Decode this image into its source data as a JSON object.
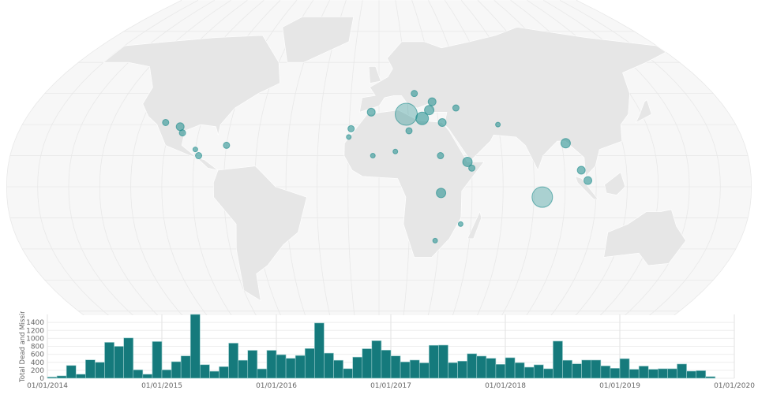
{
  "colors": {
    "bar": "#157a7c",
    "bar_edge": "#9fcfcf",
    "bubble": "#1a8a8a",
    "land": "#e6e6e6",
    "ocean": "#f7f7f7",
    "grid": "#eeeeee"
  },
  "chart_data": [
    {
      "type": "scatter",
      "subtype": "geo-bubble-map",
      "projection": "robinson",
      "points": [
        {
          "lat": 35,
          "lon": 14,
          "size": 14
        },
        {
          "lat": 33,
          "lon": 22,
          "size": 8
        },
        {
          "lat": 37,
          "lon": 26,
          "size": 6
        },
        {
          "lat": 31,
          "lon": 32,
          "size": 5
        },
        {
          "lat": 36,
          "lon": -4,
          "size": 5
        },
        {
          "lat": 38,
          "lon": 40,
          "size": 4
        },
        {
          "lat": 45,
          "lon": 19,
          "size": 4
        },
        {
          "lat": 41,
          "lon": 28,
          "size": 5
        },
        {
          "lat": 31,
          "lon": -108,
          "size": 4
        },
        {
          "lat": 29,
          "lon": -100,
          "size": 5
        },
        {
          "lat": 26,
          "lon": -98,
          "size": 4
        },
        {
          "lat": 20,
          "lon": -75,
          "size": 4
        },
        {
          "lat": 15,
          "lon": -88,
          "size": 4
        },
        {
          "lat": 18,
          "lon": -90,
          "size": 3
        },
        {
          "lat": -5,
          "lon": 79,
          "size": 13
        },
        {
          "lat": 15,
          "lon": 30,
          "size": 4
        },
        {
          "lat": 27,
          "lon": 15,
          "size": 4
        },
        {
          "lat": 17,
          "lon": 8,
          "size": 3
        },
        {
          "lat": 15,
          "lon": -3,
          "size": 3
        },
        {
          "lat": 12,
          "lon": 43,
          "size": 6
        },
        {
          "lat": 9,
          "lon": 45,
          "size": 4
        },
        {
          "lat": -3,
          "lon": 30,
          "size": 6
        },
        {
          "lat": 21,
          "lon": 92,
          "size": 6
        },
        {
          "lat": 8,
          "lon": 98,
          "size": 5
        },
        {
          "lat": 3,
          "lon": 101,
          "size": 5
        },
        {
          "lat": 30,
          "lon": 60,
          "size": 3
        },
        {
          "lat": 24,
          "lon": -15,
          "size": 3
        },
        {
          "lat": 28,
          "lon": -14,
          "size": 4
        },
        {
          "lat": -18,
          "lon": 40,
          "size": 3
        },
        {
          "lat": -26,
          "lon": 28,
          "size": 3
        }
      ]
    },
    {
      "type": "bar",
      "xlabel": "",
      "ylabel": "Total Dead and Missing",
      "ylim": [
        0,
        1600
      ],
      "yticks": [
        "0",
        "200",
        "400",
        "600",
        "800",
        "1000",
        "1200",
        "1400"
      ],
      "xticks": [
        "01/01/2014",
        "01/01/2015",
        "01/01/2016",
        "01/01/2017",
        "01/01/2018",
        "01/01/2019",
        "01/01/2020"
      ],
      "grid": true,
      "start_month": "2014-01",
      "values": [
        30,
        60,
        320,
        100,
        460,
        400,
        900,
        800,
        1010,
        210,
        100,
        920,
        210,
        415,
        560,
        1600,
        340,
        175,
        290,
        880,
        450,
        700,
        235,
        700,
        590,
        500,
        570,
        745,
        1385,
        630,
        450,
        240,
        530,
        740,
        940,
        705,
        560,
        410,
        455,
        385,
        825,
        830,
        390,
        430,
        615,
        555,
        500,
        350,
        515,
        390,
        277,
        337,
        238,
        930,
        450,
        363,
        455,
        455,
        310,
        250,
        490,
        225,
        305,
        225,
        238,
        238,
        357,
        178,
        190,
        40,
        0
      ]
    }
  ]
}
